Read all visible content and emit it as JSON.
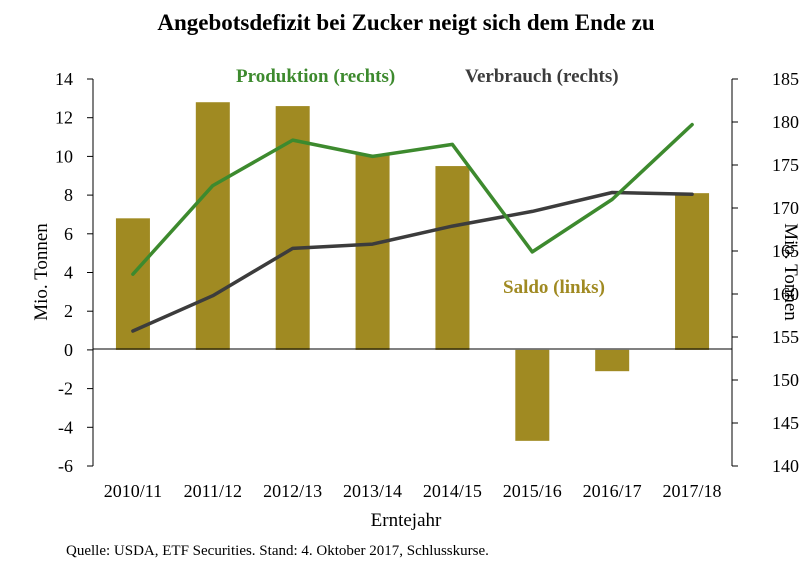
{
  "chart_data": {
    "type": "bar",
    "title": "Angebotsdefizit bei Zucker neigt sich dem Ende zu",
    "xlabel": "Erntejahr",
    "ylabel_left": "Mio. Tonnen",
    "ylabel_right": "Mio. Tonnen",
    "categories": [
      "2010/11",
      "2011/12",
      "2012/13",
      "2013/14",
      "2014/15",
      "2015/16",
      "2016/17",
      "2017/18"
    ],
    "ylim_left": [
      -6,
      14
    ],
    "ylim_right": [
      140,
      185
    ],
    "yticks_left": [
      "14",
      "12",
      "10",
      "8",
      "6",
      "4",
      "2",
      "0",
      "-2",
      "-4",
      "-6"
    ],
    "yticks_right": [
      "185",
      "180",
      "175",
      "170",
      "165",
      "160",
      "155",
      "150",
      "145",
      "140"
    ],
    "series": [
      {
        "name": "Saldo (links)",
        "type": "bar",
        "axis": "left",
        "color": "#a08a22",
        "values": [
          6.8,
          12.8,
          12.6,
          10.1,
          9.5,
          -4.7,
          -1.1,
          8.1
        ]
      },
      {
        "name": "Produktion (rechts)",
        "type": "line",
        "axis": "right",
        "color": "#3d8a2e",
        "values": [
          162.3,
          172.6,
          177.9,
          176.0,
          177.4,
          164.9,
          171.0,
          179.7
        ]
      },
      {
        "name": "Verbrauch (rechts)",
        "type": "line",
        "axis": "right",
        "color": "#3c3c3c",
        "values": [
          155.7,
          159.8,
          165.3,
          165.8,
          167.9,
          169.6,
          171.8,
          171.6
        ]
      }
    ],
    "grid": false,
    "legend_placement": "top"
  },
  "source_text": "Quelle: USDA, ETF Securities. Stand: 4. Oktober 2017, Schlusskurse."
}
